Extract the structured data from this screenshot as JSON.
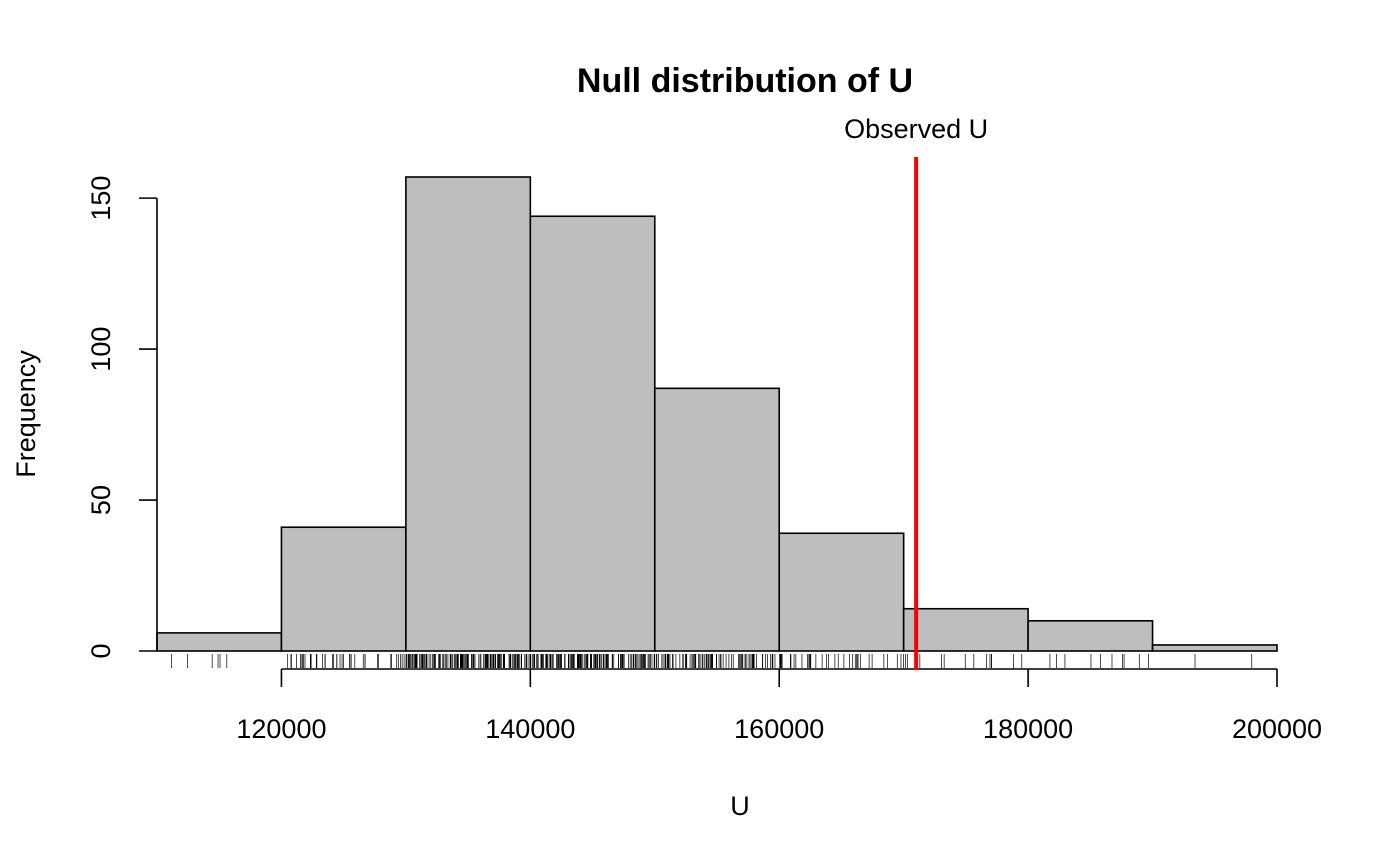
{
  "chart_data": {
    "type": "histogram",
    "title": "Null distribution of U",
    "xlabel": "U",
    "ylabel": "Frequency",
    "bins": [
      {
        "start": 110000,
        "end": 120000,
        "count": 6
      },
      {
        "start": 120000,
        "end": 130000,
        "count": 41
      },
      {
        "start": 130000,
        "end": 140000,
        "count": 157
      },
      {
        "start": 140000,
        "end": 150000,
        "count": 144
      },
      {
        "start": 150000,
        "end": 160000,
        "count": 87
      },
      {
        "start": 160000,
        "end": 170000,
        "count": 39
      },
      {
        "start": 170000,
        "end": 180000,
        "count": 14
      },
      {
        "start": 180000,
        "end": 190000,
        "count": 10
      },
      {
        "start": 190000,
        "end": 200000,
        "count": 2
      }
    ],
    "x_ticks": [
      120000,
      140000,
      160000,
      180000,
      200000
    ],
    "x_tick_labels": [
      "120000",
      "140000",
      "160000",
      "180000",
      "200000"
    ],
    "y_ticks": [
      0,
      50,
      100,
      150
    ],
    "y_tick_labels": [
      "0",
      "50",
      "100",
      "150"
    ],
    "xlim": [
      110000,
      200000
    ],
    "ylim": [
      0,
      157
    ],
    "observed": {
      "value": 171000,
      "label": "Observed U",
      "color": "#ff0000"
    },
    "bar_color": "#bebebe",
    "rug": true,
    "grid": false
  }
}
